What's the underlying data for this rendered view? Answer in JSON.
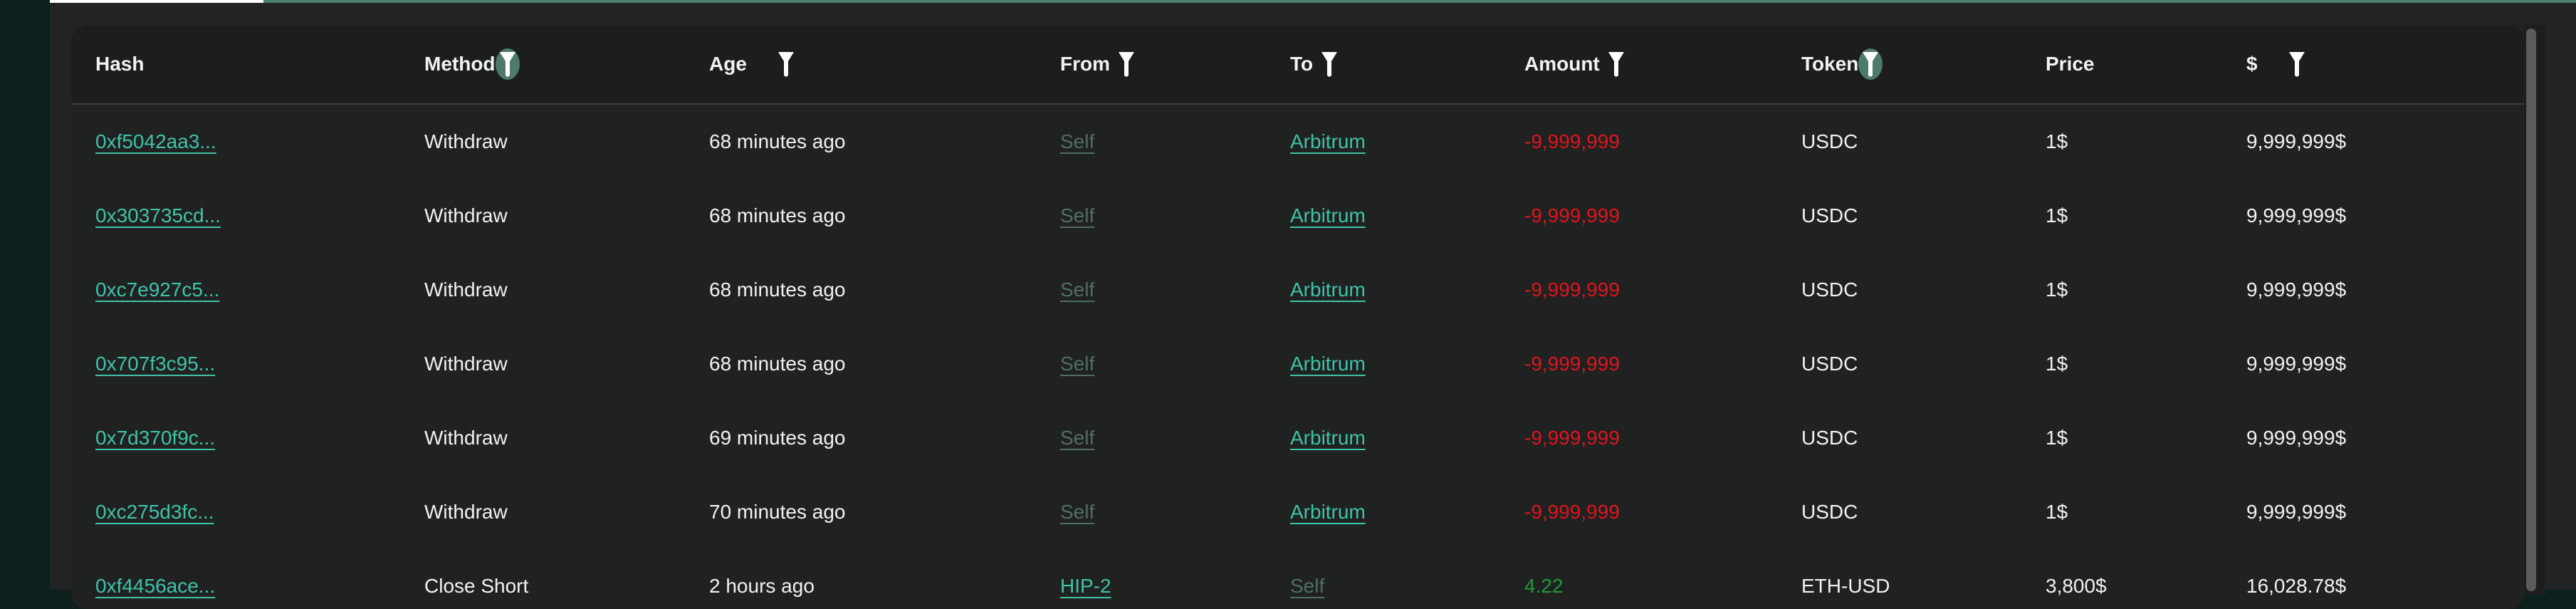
{
  "colors": {
    "accent": "#3fc3a8",
    "negative": "#e0141e",
    "positive": "#1f9a3a",
    "muted_link": "#4f6e66",
    "filter_active_bg": "#4e7a6c"
  },
  "table": {
    "columns": [
      {
        "label": "Hash",
        "filter": "none"
      },
      {
        "label": "Method",
        "filter": "active"
      },
      {
        "label": "Age",
        "filter": "inactive"
      },
      {
        "label": "From",
        "filter": "inactive"
      },
      {
        "label": "To",
        "filter": "inactive"
      },
      {
        "label": "Amount",
        "filter": "inactive"
      },
      {
        "label": "Token",
        "filter": "active"
      },
      {
        "label": "Price",
        "filter": "none"
      },
      {
        "label": "$",
        "filter": "inactive"
      }
    ],
    "rows": [
      {
        "hash": "0xf5042aa3...",
        "method": "Withdraw",
        "age": "68 minutes ago",
        "from": "Self",
        "to": "Arbitrum",
        "amount": "-9,999,999",
        "token": "USDC",
        "price": "1$",
        "usd": "9,999,999$"
      },
      {
        "hash": "0x303735cd...",
        "method": "Withdraw",
        "age": "68 minutes ago",
        "from": "Self",
        "to": "Arbitrum",
        "amount": "-9,999,999",
        "token": "USDC",
        "price": "1$",
        "usd": "9,999,999$"
      },
      {
        "hash": "0xc7e927c5...",
        "method": "Withdraw",
        "age": "68 minutes ago",
        "from": "Self",
        "to": "Arbitrum",
        "amount": "-9,999,999",
        "token": "USDC",
        "price": "1$",
        "usd": "9,999,999$"
      },
      {
        "hash": "0x707f3c95...",
        "method": "Withdraw",
        "age": "68 minutes ago",
        "from": "Self",
        "to": "Arbitrum",
        "amount": "-9,999,999",
        "token": "USDC",
        "price": "1$",
        "usd": "9,999,999$"
      },
      {
        "hash": "0x7d370f9c...",
        "method": "Withdraw",
        "age": "69 minutes ago",
        "from": "Self",
        "to": "Arbitrum",
        "amount": "-9,999,999",
        "token": "USDC",
        "price": "1$",
        "usd": "9,999,999$"
      },
      {
        "hash": "0xc275d3fc...",
        "method": "Withdraw",
        "age": "70 minutes ago",
        "from": "Self",
        "to": "Arbitrum",
        "amount": "-9,999,999",
        "token": "USDC",
        "price": "1$",
        "usd": "9,999,999$"
      },
      {
        "hash": "0xf4456ace...",
        "method": "Close Short",
        "age": "2 hours ago",
        "from": "HIP-2",
        "to": "Self",
        "amount": "4.22",
        "token": "ETH-USD",
        "price": "3,800$",
        "usd": "16,028.78$"
      }
    ]
  }
}
